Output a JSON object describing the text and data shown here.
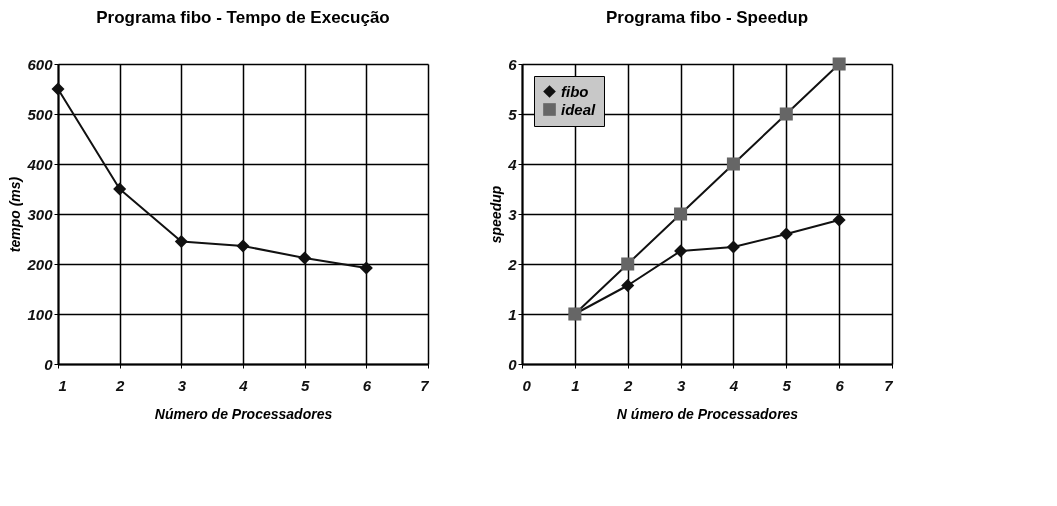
{
  "chart_data": [
    {
      "type": "line",
      "title": "Programa fibo - Tempo de Execução",
      "xlabel": "Número de Processadores",
      "ylabel": "tempo (ms)",
      "x": [
        1,
        2,
        3,
        4,
        5,
        6
      ],
      "series": [
        {
          "color": "#111111",
          "marker": "diamond",
          "values": [
            550,
            350,
            245,
            236,
            212,
            192
          ]
        }
      ],
      "xlim": [
        1,
        7
      ],
      "xticks": [
        1,
        2,
        3,
        4,
        5,
        6,
        7
      ],
      "ylim": [
        0,
        600
      ],
      "yticks": [
        0,
        100,
        200,
        300,
        400,
        500,
        600
      ],
      "grid": true,
      "line_style": "solid"
    },
    {
      "type": "line",
      "title": "Programa fibo - Speedup",
      "xlabel": "N úmero de Processadores",
      "ylabel": "speedup",
      "x": [
        1,
        2,
        3,
        4,
        5,
        6
      ],
      "series": [
        {
          "name": "fibo",
          "color": "#111111",
          "marker": "diamond",
          "values": [
            1,
            1.57,
            2.26,
            2.34,
            2.6,
            2.88
          ]
        },
        {
          "name": "ideal",
          "color": "#666666",
          "marker": "square",
          "values": [
            1,
            2,
            3,
            4,
            5,
            6
          ]
        }
      ],
      "xlim": [
        0,
        7
      ],
      "xticks": [
        0,
        1,
        2,
        3,
        4,
        5,
        6,
        7
      ],
      "ylim": [
        0,
        6
      ],
      "yticks": [
        0,
        1,
        2,
        3,
        4,
        5,
        6
      ],
      "grid": true,
      "legend": "top left",
      "line_style": "solid"
    }
  ]
}
